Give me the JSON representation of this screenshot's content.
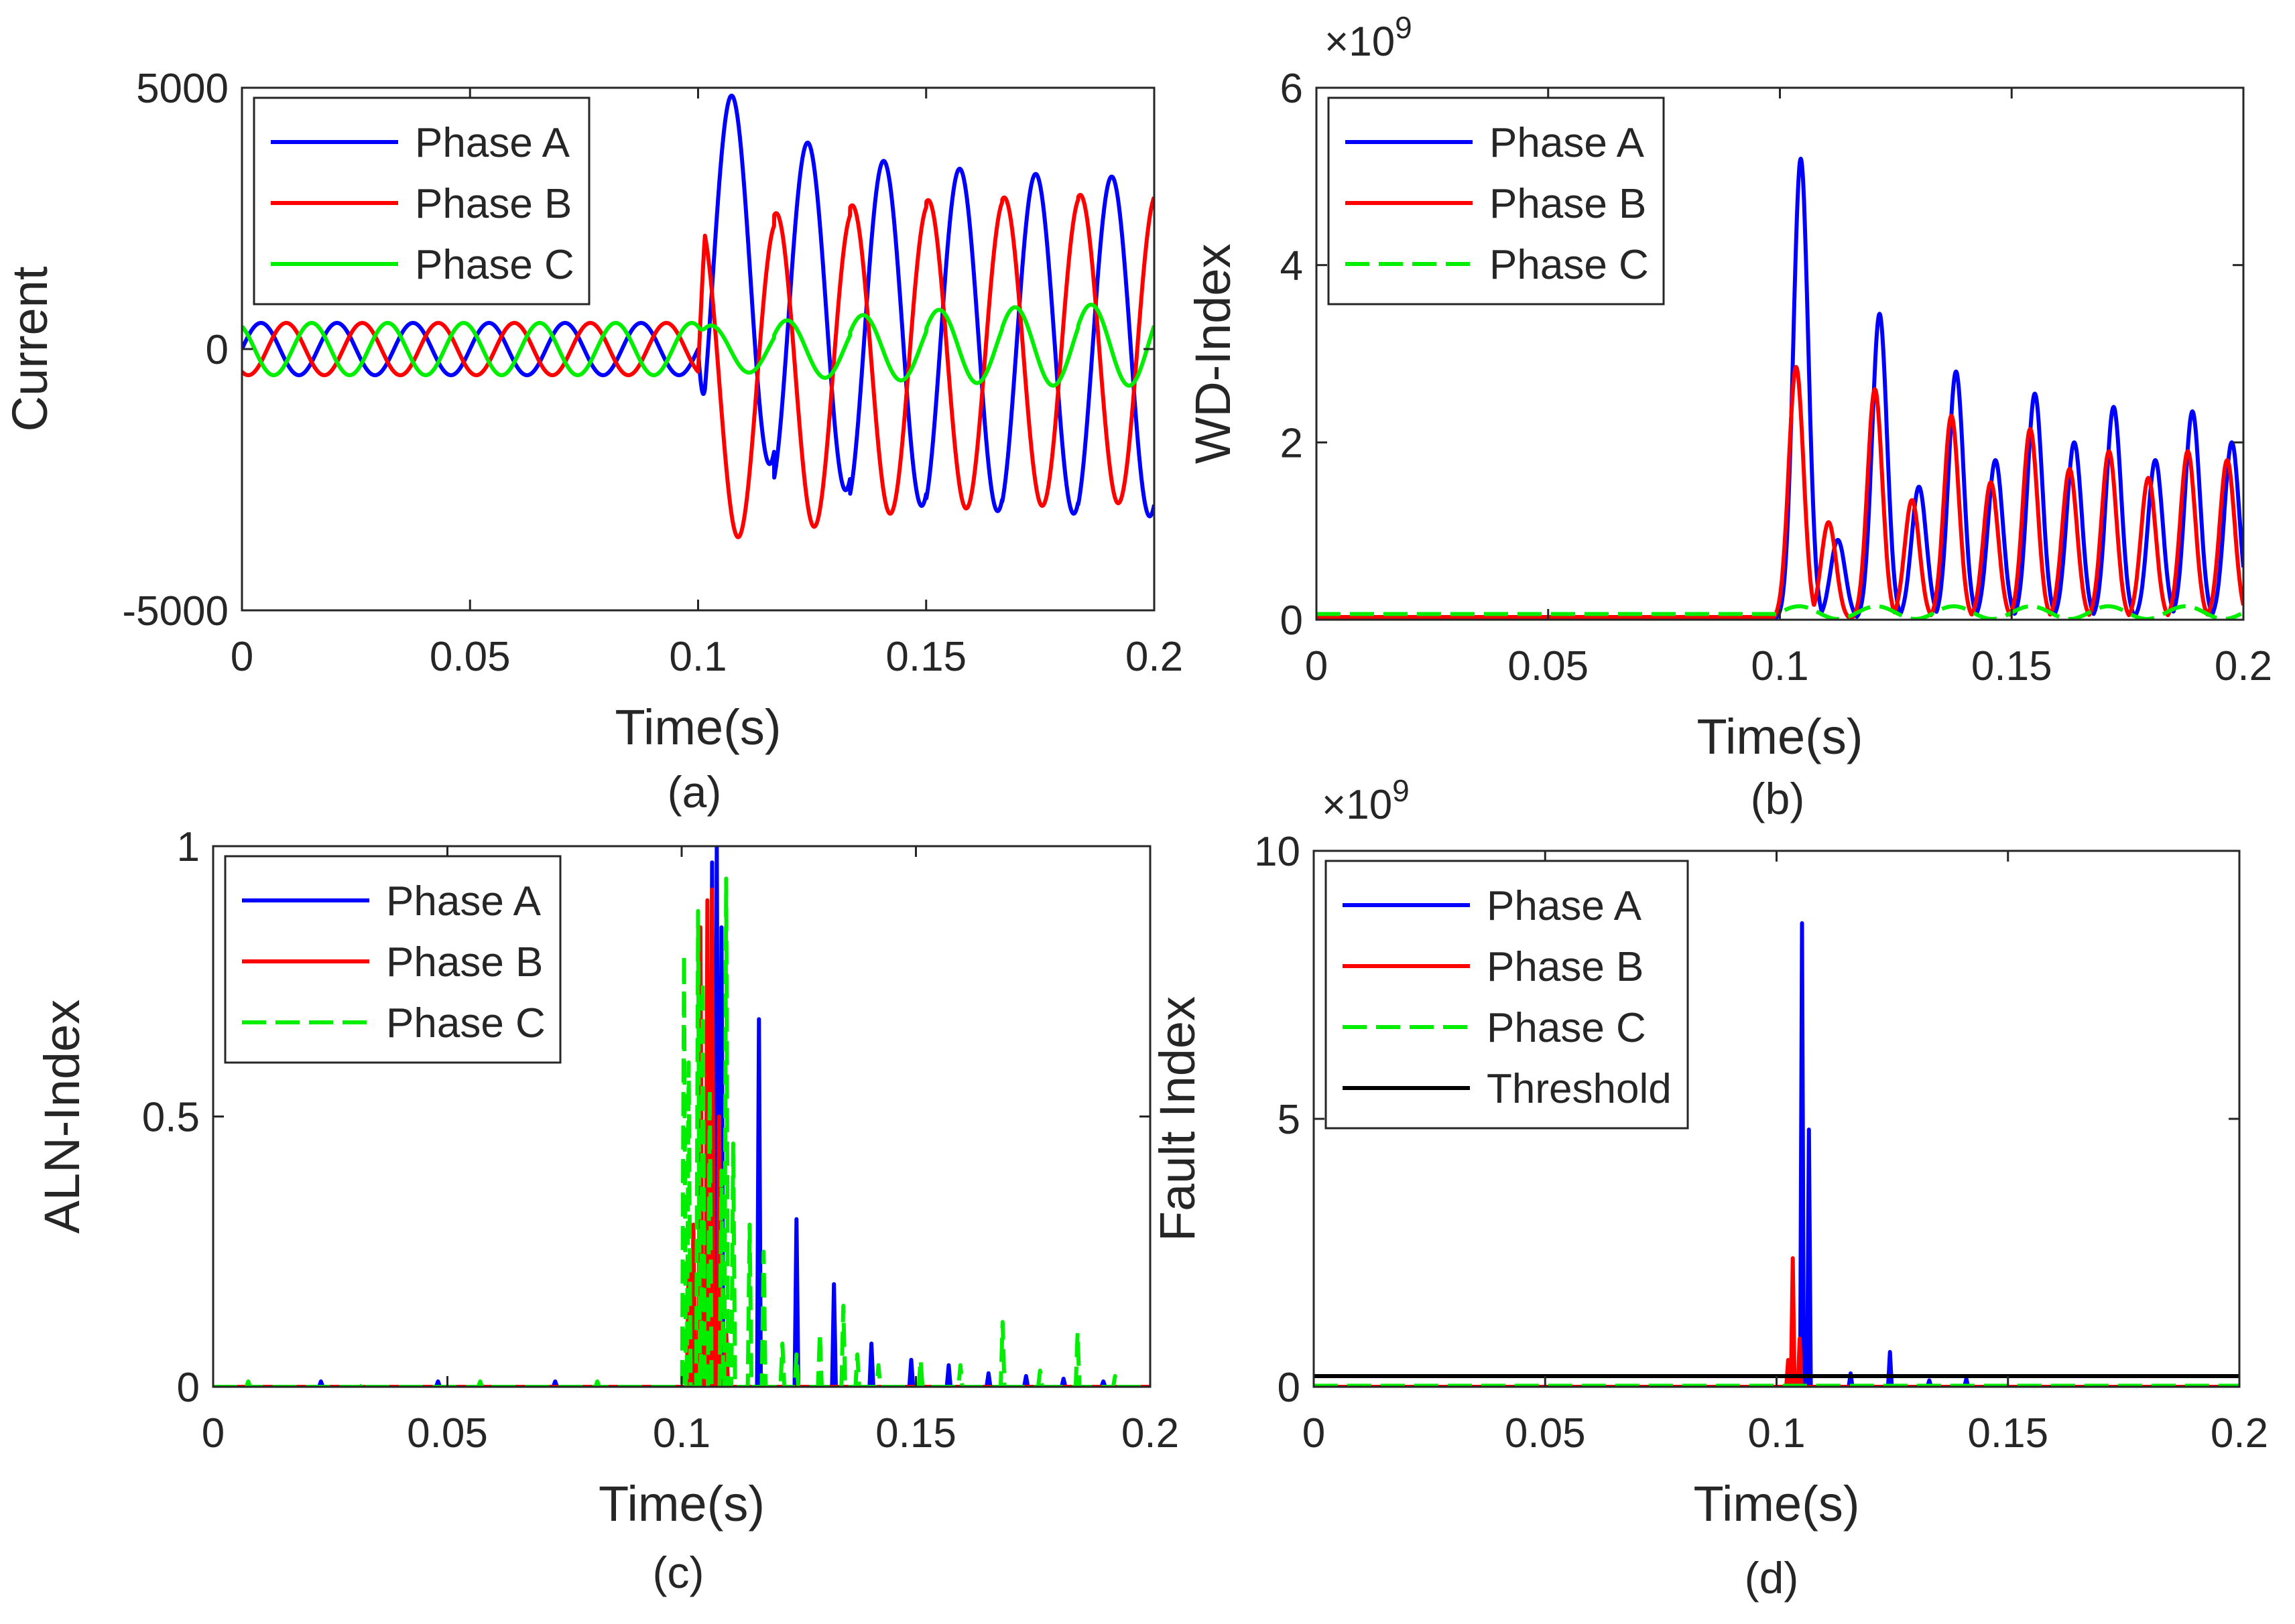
{
  "colors": {
    "phase_a": "#0000ff",
    "phase_b": "#ff0000",
    "phase_c": "#00ee00",
    "threshold": "#000000",
    "axes": "#262626"
  },
  "chart_data": [
    {
      "panel": "(a)",
      "type": "line",
      "xlabel": "Time(s)",
      "ylabel": "Current",
      "xlim": [
        0,
        0.2
      ],
      "ylim": [
        -5000,
        5000
      ],
      "xticks": [
        0,
        0.05,
        0.1,
        0.15,
        0.2
      ],
      "xtick_labels": [
        "0",
        "0.05",
        "0.1",
        "0.15",
        "0.2"
      ],
      "yticks": [
        -5000,
        0,
        5000
      ],
      "ytick_labels": [
        "-5000",
        "0",
        "5000"
      ],
      "exponent": "",
      "legend_position": "top-left",
      "fault_time": 0.1,
      "series": [
        {
          "name": "Phase A",
          "style": "solid",
          "pre_fault_amplitude": 500,
          "post_fault_peaks": [
            4850,
            3950,
            3600,
            3450,
            3350,
            3300
          ],
          "post_fault_troughs": [
            -2200,
            -2700,
            -3000,
            -3100,
            -3150,
            -3200
          ]
        },
        {
          "name": "Phase B",
          "style": "solid",
          "pre_fault_amplitude": 500,
          "post_fault_peaks": [
            2400,
            2600,
            2750,
            2850,
            2900,
            2950
          ],
          "post_fault_troughs": [
            -3600,
            -3400,
            -3150,
            -3050,
            -3000,
            -2950
          ]
        },
        {
          "name": "Phase C",
          "style": "solid",
          "pre_fault_amplitude": 500,
          "post_fault_peaks": [
            450,
            550,
            650,
            750,
            800,
            850
          ],
          "post_fault_troughs": [
            -450,
            -550,
            -600,
            -650,
            -700,
            -700
          ]
        }
      ],
      "legend": [
        "Phase A",
        "Phase B",
        "Phase C"
      ],
      "caption": "(a)"
    },
    {
      "panel": "(b)",
      "type": "line",
      "xlabel": "Time(s)",
      "ylabel": "WD-Index",
      "xlim": [
        0,
        0.2
      ],
      "ylim": [
        0,
        6
      ],
      "xticks": [
        0,
        0.05,
        0.1,
        0.15,
        0.2
      ],
      "xtick_labels": [
        "0",
        "0.05",
        "0.1",
        "0.15",
        "0.2"
      ],
      "yticks": [
        0,
        2,
        4,
        6
      ],
      "ytick_labels": [
        "0",
        "2",
        "4",
        "6"
      ],
      "exponent_base": "×10",
      "exponent_power": "9",
      "legend_position": "top-left",
      "series": [
        {
          "name": "Phase A",
          "style": "solid",
          "peaks": [
            [
              0.1045,
              5.2
            ],
            [
              0.1125,
              0.9
            ],
            [
              0.1215,
              3.45
            ],
            [
              0.13,
              1.5
            ],
            [
              0.138,
              2.8
            ],
            [
              0.1465,
              1.8
            ],
            [
              0.155,
              2.55
            ],
            [
              0.1635,
              2.0
            ],
            [
              0.172,
              2.4
            ],
            [
              0.181,
              1.8
            ],
            [
              0.189,
              2.35
            ],
            [
              0.1975,
              2.0
            ]
          ]
        },
        {
          "name": "Phase B",
          "style": "solid",
          "peaks": [
            [
              0.1035,
              2.85
            ],
            [
              0.1105,
              1.1
            ],
            [
              0.1205,
              2.6
            ],
            [
              0.1285,
              1.35
            ],
            [
              0.137,
              2.3
            ],
            [
              0.1455,
              1.55
            ],
            [
              0.154,
              2.15
            ],
            [
              0.1625,
              1.7
            ],
            [
              0.171,
              1.9
            ],
            [
              0.1795,
              1.6
            ],
            [
              0.188,
              1.9
            ],
            [
              0.1965,
              1.8
            ]
          ]
        },
        {
          "name": "Phase C",
          "style": "dashed",
          "level": 0.08
        }
      ],
      "legend": [
        "Phase A",
        "Phase B",
        "Phase C"
      ],
      "caption": "(b)"
    },
    {
      "panel": "(c)",
      "type": "line",
      "xlabel": "Time(s)",
      "ylabel": "ALN-Index",
      "xlim": [
        0,
        0.2
      ],
      "ylim": [
        0,
        1
      ],
      "xticks": [
        0,
        0.05,
        0.1,
        0.15,
        0.2
      ],
      "xtick_labels": [
        "0",
        "0.05",
        "0.1",
        "0.15",
        "0.2"
      ],
      "yticks": [
        0,
        0.5,
        1
      ],
      "ytick_labels": [
        "0",
        "0.5",
        "1"
      ],
      "exponent": "",
      "legend_position": "top-left",
      "series": [
        {
          "name": "Phase A",
          "style": "solid",
          "spikes": [
            [
              0.023,
              0.01
            ],
            [
              0.048,
              0.01
            ],
            [
              0.073,
              0.01
            ],
            [
              0.1065,
              0.97
            ],
            [
              0.1075,
              1.0
            ],
            [
              0.1085,
              0.85
            ],
            [
              0.1165,
              0.68
            ],
            [
              0.1245,
              0.31
            ],
            [
              0.1325,
              0.19
            ],
            [
              0.1405,
              0.08
            ],
            [
              0.149,
              0.05
            ],
            [
              0.157,
              0.04
            ],
            [
              0.1655,
              0.025
            ],
            [
              0.1735,
              0.02
            ],
            [
              0.1815,
              0.015
            ],
            [
              0.19,
              0.01
            ]
          ]
        },
        {
          "name": "Phase B",
          "style": "solid",
          "spikes": [
            [
              0.1015,
              0.22
            ],
            [
              0.1025,
              0.3
            ],
            [
              0.104,
              0.85
            ],
            [
              0.1055,
              0.9
            ],
            [
              0.1065,
              0.92
            ],
            [
              0.108,
              0.5
            ],
            [
              0.1095,
              0.1
            ]
          ]
        },
        {
          "name": "Phase C",
          "style": "dashed",
          "spikes": [
            [
              0.0075,
              0.01
            ],
            [
              0.032,
              0.01
            ],
            [
              0.057,
              0.01
            ],
            [
              0.082,
              0.01
            ],
            [
              0.1005,
              0.8
            ],
            [
              0.1015,
              0.6
            ],
            [
              0.1035,
              0.88
            ],
            [
              0.1045,
              0.75
            ],
            [
              0.106,
              0.55
            ],
            [
              0.1085,
              0.4
            ],
            [
              0.1095,
              0.94
            ],
            [
              0.111,
              0.45
            ],
            [
              0.1145,
              0.3
            ],
            [
              0.1175,
              0.25
            ],
            [
              0.1215,
              0.08
            ],
            [
              0.1245,
              0.06
            ],
            [
              0.1295,
              0.1
            ],
            [
              0.1345,
              0.15
            ],
            [
              0.1375,
              0.06
            ],
            [
              0.142,
              0.04
            ],
            [
              0.151,
              0.05
            ],
            [
              0.1595,
              0.04
            ],
            [
              0.1685,
              0.12
            ],
            [
              0.1765,
              0.03
            ],
            [
              0.1845,
              0.1
            ],
            [
              0.1925,
              0.02
            ]
          ]
        }
      ],
      "legend": [
        "Phase A",
        "Phase B",
        "Phase C"
      ],
      "caption": "(c)"
    },
    {
      "panel": "(d)",
      "type": "line",
      "xlabel": "Time(s)",
      "ylabel": "Fault Index",
      "xlim": [
        0,
        0.2
      ],
      "ylim": [
        0,
        10
      ],
      "xticks": [
        0,
        0.05,
        0.1,
        0.15,
        0.2
      ],
      "xtick_labels": [
        "0",
        "0.05",
        "0.1",
        "0.15",
        "0.2"
      ],
      "yticks": [
        0,
        5,
        10
      ],
      "ytick_labels": [
        "0",
        "5",
        "10"
      ],
      "exponent_base": "×10",
      "exponent_power": "9",
      "legend_position": "top-left",
      "series": [
        {
          "name": "Phase A",
          "style": "solid",
          "spikes": [
            [
              0.1055,
              8.65
            ],
            [
              0.107,
              4.8
            ],
            [
              0.116,
              0.25
            ],
            [
              0.1245,
              0.65
            ],
            [
              0.133,
              0.12
            ],
            [
              0.141,
              0.15
            ]
          ]
        },
        {
          "name": "Phase B",
          "style": "solid",
          "spikes": [
            [
              0.1025,
              0.5
            ],
            [
              0.1035,
              2.4
            ],
            [
              0.105,
              0.9
            ]
          ]
        },
        {
          "name": "Phase C",
          "style": "dashed",
          "level": 0.02
        },
        {
          "name": "Threshold",
          "style": "solid",
          "level": 0.2
        }
      ],
      "legend": [
        "Phase A",
        "Phase B",
        "Phase C",
        "Threshold"
      ],
      "caption": "(d)"
    }
  ]
}
